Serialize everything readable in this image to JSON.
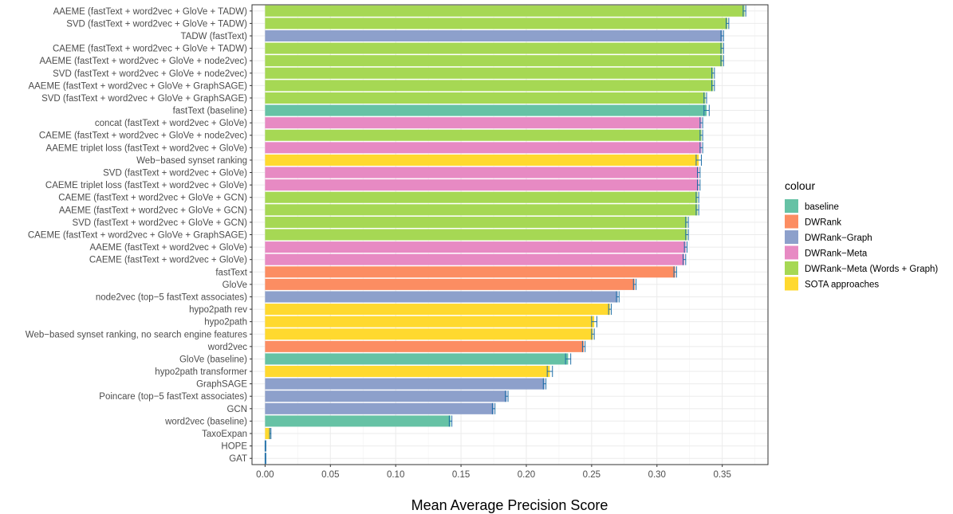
{
  "chart_data": {
    "type": "bar",
    "orientation": "horizontal",
    "xlabel": "Mean Average Precision Score",
    "ylabel": "",
    "xlim": [
      -0.01,
      0.385
    ],
    "x_ticks": [
      0.0,
      0.05,
      0.1,
      0.15,
      0.2,
      0.25,
      0.3,
      0.35
    ],
    "x_tick_labels": [
      "0.00",
      "0.05",
      "0.10",
      "0.15",
      "0.20",
      "0.25",
      "0.30",
      "0.35"
    ],
    "grid": true,
    "legend_title": "colour",
    "legend_position": "right",
    "groups": [
      {
        "name": "baseline",
        "color": "#66c2a5"
      },
      {
        "name": "DWRank",
        "color": "#fc8d62"
      },
      {
        "name": "DWRank−Graph",
        "color": "#8da0cb"
      },
      {
        "name": "DWRank−Meta",
        "color": "#e78ac3"
      },
      {
        "name": "DWRank−Meta (Words + Graph)",
        "color": "#a6d854"
      },
      {
        "name": "SOTA approaches",
        "color": "#ffd92f"
      }
    ],
    "bars": [
      {
        "label": "AAEME (fastText + word2vec + GloVe + TADW)",
        "value": 0.367,
        "err": 0.001,
        "group": 4
      },
      {
        "label": "SVD (fastText + word2vec + GloVe + TADW)",
        "value": 0.354,
        "err": 0.001,
        "group": 4
      },
      {
        "label": "TADW (fastText)",
        "value": 0.35,
        "err": 0.001,
        "group": 2
      },
      {
        "label": "CAEME (fastText + word2vec + GloVe + TADW)",
        "value": 0.35,
        "err": 0.001,
        "group": 4
      },
      {
        "label": "AAEME (fastText + word2vec + GloVe  + node2vec)",
        "value": 0.35,
        "err": 0.001,
        "group": 4
      },
      {
        "label": "SVD (fastText + word2vec + GloVe + node2vec)",
        "value": 0.343,
        "err": 0.001,
        "group": 4
      },
      {
        "label": "AAEME (fastText + word2vec + GloVe + GraphSAGE)",
        "value": 0.343,
        "err": 0.001,
        "group": 4
      },
      {
        "label": "SVD (fastText + word2vec + GloVe + GraphSAGE)",
        "value": 0.337,
        "err": 0.001,
        "group": 4
      },
      {
        "label": "fastText (baseline)",
        "value": 0.338,
        "err": 0.002,
        "group": 0
      },
      {
        "label": "concat (fastText + word2vec + GloVe)",
        "value": 0.334,
        "err": 0.001,
        "group": 3
      },
      {
        "label": "CAEME (fastText + word2vec + GloVe + node2vec)",
        "value": 0.334,
        "err": 0.001,
        "group": 4
      },
      {
        "label": "AAEME triplet loss (fastText + word2vec + GloVe)",
        "value": 0.334,
        "err": 0.001,
        "group": 3
      },
      {
        "label": "Web−based synset ranking",
        "value": 0.332,
        "err": 0.002,
        "group": 5
      },
      {
        "label": "SVD (fastText + word2vec + GloVe)",
        "value": 0.332,
        "err": 0.001,
        "group": 3
      },
      {
        "label": "CAEME triplet loss (fastText + word2vec + GloVe)",
        "value": 0.332,
        "err": 0.001,
        "group": 3
      },
      {
        "label": "CAEME (fastText + word2vec + GloVe + GCN)",
        "value": 0.331,
        "err": 0.001,
        "group": 4
      },
      {
        "label": "AAEME (fastText + word2vec + GloVe + GCN)",
        "value": 0.331,
        "err": 0.001,
        "group": 4
      },
      {
        "label": "SVD (fastText + word2vec + GloVe + GCN)",
        "value": 0.323,
        "err": 0.001,
        "group": 4
      },
      {
        "label": "CAEME (fastText + word2vec + GloVe + GraphSAGE)",
        "value": 0.323,
        "err": 0.001,
        "group": 4
      },
      {
        "label": "AAEME (fastText + word2vec + GloVe)",
        "value": 0.322,
        "err": 0.001,
        "group": 3
      },
      {
        "label": "CAEME (fastText + word2vec + GloVe)",
        "value": 0.321,
        "err": 0.001,
        "group": 3
      },
      {
        "label": "fastText",
        "value": 0.314,
        "err": 0.001,
        "group": 1
      },
      {
        "label": "GloVe",
        "value": 0.283,
        "err": 0.001,
        "group": 1
      },
      {
        "label": "node2vec (top−5 fastText associates)",
        "value": 0.27,
        "err": 0.001,
        "group": 2
      },
      {
        "label": "hypo2path rev",
        "value": 0.264,
        "err": 0.001,
        "group": 5
      },
      {
        "label": "hypo2path",
        "value": 0.252,
        "err": 0.002,
        "group": 5
      },
      {
        "label": "Web−based synset ranking, no search engine features",
        "value": 0.251,
        "err": 0.001,
        "group": 5
      },
      {
        "label": "word2vec",
        "value": 0.244,
        "err": 0.001,
        "group": 1
      },
      {
        "label": "GloVe (baseline)",
        "value": 0.232,
        "err": 0.002,
        "group": 0
      },
      {
        "label": "hypo2path transformer",
        "value": 0.218,
        "err": 0.002,
        "group": 5
      },
      {
        "label": "GraphSAGE",
        "value": 0.214,
        "err": 0.001,
        "group": 2
      },
      {
        "label": "Poincare (top−5 fastText associates)",
        "value": 0.185,
        "err": 0.001,
        "group": 2
      },
      {
        "label": "GCN",
        "value": 0.175,
        "err": 0.001,
        "group": 2
      },
      {
        "label": "word2vec (baseline)",
        "value": 0.142,
        "err": 0.001,
        "group": 0
      },
      {
        "label": "TaxoExpan",
        "value": 0.004,
        "err": 0.0005,
        "group": 5
      },
      {
        "label": "HOPE",
        "value": 0.0003,
        "err": 0.0003,
        "group": 2
      },
      {
        "label": "GAT",
        "value": 0.0003,
        "err": 0.0003,
        "group": 2
      }
    ]
  }
}
